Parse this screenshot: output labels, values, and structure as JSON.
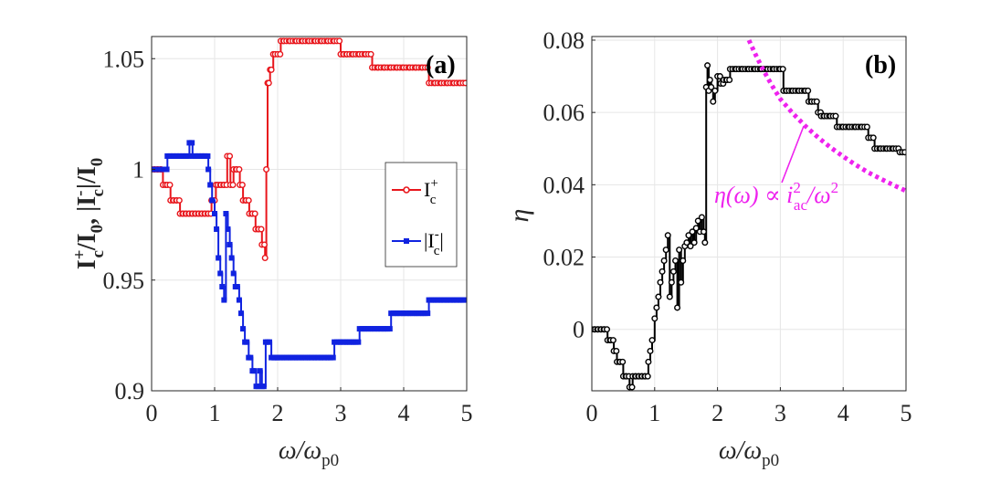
{
  "chart_data": [
    {
      "type": "line",
      "panel": "(a)",
      "xlabel": "ω/ω_p0",
      "ylabel": "I_c^+/I_0, |I_c^-|/I_0",
      "xlabel_parts": {
        "main": "ω/ω",
        "sub": "p0"
      },
      "ylabel_parts": {
        "a": "I",
        "a_sup": "+",
        "a_sub": "c",
        "b": "/I",
        "b_sub": "0",
        "c": ", |I",
        "c_sup": "-",
        "c_sub": "c",
        "d": "|/I",
        "d_sub": "0"
      },
      "xlim": [
        0,
        5
      ],
      "ylim": [
        0.9,
        1.06
      ],
      "xticks": [
        0,
        1,
        2,
        3,
        4,
        5
      ],
      "yticks": [
        0.9,
        0.95,
        1.0,
        1.05
      ],
      "ytick_labels": [
        "0.9",
        "0.95",
        "1",
        "1.05"
      ],
      "grid": true,
      "legend_position": "right",
      "series": [
        {
          "name": "I_c^+",
          "legend": {
            "main": "I",
            "sup": "+",
            "sub": "c"
          },
          "color": "#e8161c",
          "marker": "circle",
          "x": [
            0.0,
            0.05,
            0.1,
            0.15,
            0.18,
            0.25,
            0.3,
            0.35,
            0.4,
            0.45,
            0.5,
            0.55,
            0.6,
            0.65,
            0.7,
            0.75,
            0.8,
            0.85,
            0.9,
            0.95,
            1.0,
            1.02,
            1.05,
            1.1,
            1.15,
            1.2,
            1.25,
            1.3,
            1.35,
            1.4,
            1.45,
            1.5,
            1.55,
            1.6,
            1.65,
            1.7,
            1.75,
            1.8,
            1.82,
            1.84,
            1.86,
            1.88,
            1.9,
            1.93,
            1.96,
            2.0,
            2.05,
            2.1,
            2.2,
            2.3,
            2.4,
            2.5,
            2.6,
            2.7,
            2.8,
            2.9,
            3.0,
            3.05,
            3.1,
            3.2,
            3.3,
            3.4,
            3.5,
            3.6,
            3.7,
            3.8,
            3.9,
            4.0,
            4.1,
            4.2,
            4.3,
            4.4,
            4.5,
            4.6,
            4.7,
            4.8,
            4.9,
            5.0
          ],
          "y": [
            1.0,
            1.0,
            1.0,
            1.0,
            0.993,
            0.993,
            0.986,
            0.986,
            0.986,
            0.98,
            0.98,
            0.98,
            0.98,
            0.98,
            0.98,
            0.98,
            0.98,
            0.98,
            0.98,
            0.986,
            0.986,
            0.993,
            0.993,
            0.993,
            0.993,
            1.006,
            0.993,
            1.0,
            1.0,
            0.993,
            0.986,
            0.986,
            0.98,
            0.98,
            0.973,
            0.973,
            0.966,
            0.96,
            1.0,
            1.039,
            1.039,
            1.045,
            1.045,
            1.052,
            1.052,
            1.052,
            1.058,
            1.058,
            1.058,
            1.058,
            1.058,
            1.058,
            1.058,
            1.058,
            1.058,
            1.058,
            1.052,
            1.052,
            1.052,
            1.052,
            1.052,
            1.052,
            1.046,
            1.046,
            1.046,
            1.046,
            1.046,
            1.046,
            1.046,
            1.046,
            1.046,
            1.039,
            1.039,
            1.039,
            1.039,
            1.039,
            1.039,
            1.039
          ]
        },
        {
          "name": "|I_c^-|",
          "legend": {
            "pre": "|I",
            "sup": "-",
            "sub": "c",
            "post": "|"
          },
          "color": "#1023e0",
          "marker": "square",
          "x": [
            0.0,
            0.05,
            0.1,
            0.15,
            0.2,
            0.25,
            0.3,
            0.35,
            0.4,
            0.45,
            0.5,
            0.55,
            0.6,
            0.65,
            0.7,
            0.75,
            0.8,
            0.85,
            0.9,
            0.93,
            0.96,
            1.0,
            1.03,
            1.06,
            1.09,
            1.12,
            1.15,
            1.18,
            1.21,
            1.24,
            1.27,
            1.3,
            1.33,
            1.36,
            1.39,
            1.42,
            1.45,
            1.48,
            1.51,
            1.54,
            1.57,
            1.6,
            1.63,
            1.66,
            1.69,
            1.72,
            1.75,
            1.78,
            1.81,
            1.84,
            1.87,
            1.9,
            1.95,
            2.0,
            2.1,
            2.2,
            2.3,
            2.4,
            2.5,
            2.6,
            2.7,
            2.8,
            2.9,
            3.0,
            3.1,
            3.2,
            3.3,
            3.4,
            3.5,
            3.6,
            3.7,
            3.8,
            3.9,
            4.0,
            4.1,
            4.2,
            4.3,
            4.4,
            4.5,
            4.6,
            4.7,
            4.8,
            4.9,
            5.0
          ],
          "y": [
            1.0,
            1.0,
            1.0,
            1.0,
            1.0,
            1.006,
            1.006,
            1.006,
            1.006,
            1.006,
            1.006,
            1.006,
            1.012,
            1.006,
            1.006,
            1.006,
            1.006,
            1.006,
            1.0,
            0.993,
            0.986,
            0.98,
            0.973,
            0.96,
            0.953,
            0.947,
            0.941,
            0.98,
            0.973,
            0.966,
            0.96,
            0.953,
            0.947,
            0.947,
            0.941,
            0.935,
            0.928,
            0.922,
            0.922,
            0.915,
            0.915,
            0.909,
            0.909,
            0.902,
            0.902,
            0.909,
            0.902,
            0.902,
            0.922,
            0.922,
            0.922,
            0.915,
            0.915,
            0.915,
            0.915,
            0.915,
            0.915,
            0.915,
            0.915,
            0.915,
            0.915,
            0.915,
            0.922,
            0.922,
            0.922,
            0.922,
            0.928,
            0.928,
            0.928,
            0.928,
            0.928,
            0.935,
            0.935,
            0.935,
            0.935,
            0.935,
            0.935,
            0.941,
            0.941,
            0.941,
            0.941,
            0.941,
            0.941,
            0.941
          ]
        }
      ]
    },
    {
      "type": "line",
      "panel": "(b)",
      "xlabel": "ω/ω_p0",
      "ylabel": "η",
      "xlabel_parts": {
        "main": "ω/ω",
        "sub": "p0"
      },
      "xlim": [
        0,
        5
      ],
      "ylim": [
        -0.017,
        0.081
      ],
      "xticks": [
        0,
        1,
        2,
        3,
        4,
        5
      ],
      "yticks": [
        0,
        0.02,
        0.04,
        0.06,
        0.08
      ],
      "ytick_labels": [
        "0",
        "0.02",
        "0.04",
        "0.06",
        "0.08"
      ],
      "grid": true,
      "annotation": {
        "text": "η(ω) ∝ i_ac^2/ω^2",
        "parts": {
          "a": "η(ω) ∝ i",
          "a_sup": "2",
          "a_sub": "ac",
          "b": "/ω",
          "b_sup": "2"
        },
        "color": "#ee22ee"
      },
      "series": [
        {
          "name": "η",
          "color": "#000000",
          "marker": "circle",
          "x": [
            0.0,
            0.05,
            0.1,
            0.15,
            0.2,
            0.25,
            0.3,
            0.35,
            0.4,
            0.45,
            0.5,
            0.55,
            0.6,
            0.65,
            0.7,
            0.75,
            0.8,
            0.85,
            0.9,
            0.93,
            0.96,
            1.0,
            1.03,
            1.06,
            1.09,
            1.12,
            1.15,
            1.18,
            1.21,
            1.24,
            1.27,
            1.3,
            1.33,
            1.36,
            1.39,
            1.42,
            1.45,
            1.48,
            1.51,
            1.54,
            1.57,
            1.6,
            1.63,
            1.66,
            1.69,
            1.72,
            1.75,
            1.78,
            1.8,
            1.82,
            1.84,
            1.86,
            1.88,
            1.9,
            1.93,
            1.96,
            2.0,
            2.05,
            2.1,
            2.15,
            2.2,
            2.3,
            2.4,
            2.5,
            2.6,
            2.7,
            2.8,
            2.9,
            3.0,
            3.05,
            3.1,
            3.2,
            3.3,
            3.4,
            3.45,
            3.5,
            3.6,
            3.65,
            3.7,
            3.8,
            3.9,
            4.0,
            4.1,
            4.2,
            4.3,
            4.4,
            4.5,
            4.6,
            4.7,
            4.8,
            4.9,
            5.0
          ],
          "y": [
            0.0,
            0.0,
            0.0,
            0.0,
            0.0,
            -0.003,
            -0.003,
            -0.006,
            -0.009,
            -0.009,
            -0.013,
            -0.013,
            -0.016,
            -0.013,
            -0.013,
            -0.013,
            -0.013,
            -0.013,
            -0.009,
            -0.006,
            -0.003,
            0.003,
            0.006,
            0.009,
            0.013,
            0.016,
            0.019,
            0.022,
            0.026,
            0.009,
            0.013,
            0.016,
            0.019,
            0.006,
            0.022,
            0.013,
            0.019,
            0.023,
            0.024,
            0.026,
            0.023,
            0.027,
            0.024,
            0.028,
            0.03,
            0.027,
            0.031,
            0.027,
            0.024,
            0.067,
            0.073,
            0.066,
            0.069,
            0.067,
            0.063,
            0.066,
            0.07,
            0.068,
            0.069,
            0.069,
            0.072,
            0.072,
            0.072,
            0.072,
            0.072,
            0.072,
            0.072,
            0.072,
            0.072,
            0.066,
            0.066,
            0.066,
            0.066,
            0.066,
            0.063,
            0.063,
            0.06,
            0.059,
            0.059,
            0.059,
            0.056,
            0.056,
            0.056,
            0.056,
            0.056,
            0.053,
            0.05,
            0.05,
            0.05,
            0.05,
            0.049,
            0.049
          ]
        },
        {
          "name": "η(ω) ∝ i_ac^2/ω^2",
          "color": "#ee22ee",
          "style": "dotted",
          "x": [
            2.5,
            2.6,
            2.7,
            2.8,
            2.9,
            3.0,
            3.2,
            3.4,
            3.6,
            3.8,
            4.0,
            4.2,
            4.4,
            4.6,
            4.8,
            5.0
          ],
          "y": [
            0.08,
            0.0762,
            0.0727,
            0.0695,
            0.0665,
            0.0637,
            0.0597,
            0.0562,
            0.0531,
            0.0503,
            0.0478,
            0.0455,
            0.0434,
            0.0416,
            0.0399,
            0.0383
          ]
        }
      ]
    }
  ]
}
